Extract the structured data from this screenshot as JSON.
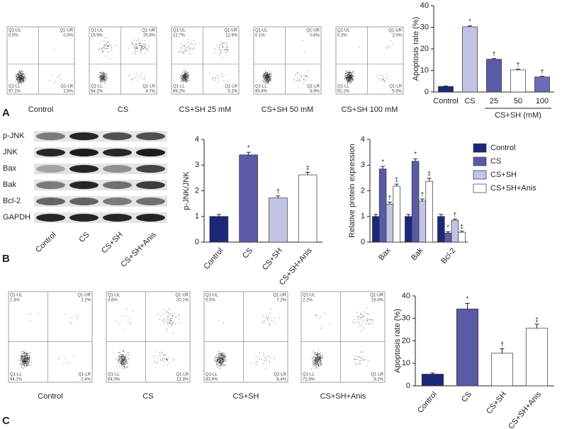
{
  "chart_data": [
    {
      "type": "bar",
      "ylabel": "Apoptosis rate (%)",
      "categories": [
        "Control",
        "CS",
        "25",
        "50",
        "100"
      ],
      "x_group_label": "CS+SH (mM)",
      "values": [
        2.6,
        30.2,
        15.2,
        10.2,
        7.0
      ],
      "errors": [
        0.2,
        0.4,
        0.3,
        0.4,
        0.3
      ],
      "annotations": [
        null,
        "*",
        "†",
        "†",
        "†"
      ],
      "colors": [
        "#1b2878",
        "#c3c3e3",
        "#5a5aa6",
        "#ffffff",
        "#6b6bb6"
      ],
      "ylim": [
        0,
        40
      ],
      "yticks": [
        0,
        10,
        20,
        30,
        40
      ]
    },
    {
      "type": "bar",
      "ylabel": "p-JNK/JNK",
      "categories": [
        "Control",
        "CS",
        "CS+SH",
        "CS+SH+Anis"
      ],
      "values": [
        1.0,
        3.4,
        1.72,
        2.62
      ],
      "errors": [
        0.08,
        0.1,
        0.08,
        0.1
      ],
      "annotations": [
        null,
        "*",
        "†",
        "‡"
      ],
      "colors": [
        "#1b2878",
        "#5a5aa6",
        "#c3c3e3",
        "#ffffff"
      ],
      "ylim": [
        0,
        4
      ],
      "yticks": [
        0,
        1,
        2,
        3,
        4
      ]
    },
    {
      "type": "grouped-bar",
      "ylabel": "Relative protein expression",
      "categories": [
        "Bax",
        "Bak",
        "Bcl-2"
      ],
      "series": [
        {
          "name": "Control",
          "color": "#1b2878",
          "values": [
            1.0,
            1.0,
            1.0
          ],
          "errors": [
            0.08,
            0.08,
            0.08
          ],
          "annotations": [
            null,
            null,
            null
          ]
        },
        {
          "name": "CS",
          "color": "#5a5aa6",
          "values": [
            2.85,
            3.15,
            0.35
          ],
          "errors": [
            0.1,
            0.1,
            0.05
          ],
          "annotations": [
            "*",
            "*",
            "*"
          ]
        },
        {
          "name": "CS+SH",
          "color": "#c3c3e3",
          "values": [
            1.48,
            1.6,
            0.85
          ],
          "errors": [
            0.08,
            0.08,
            0.05
          ],
          "annotations": [
            "†",
            "†",
            "†"
          ]
        },
        {
          "name": "CS+SH+Anis",
          "color": "#ffffff",
          "values": [
            2.18,
            2.37,
            0.38
          ],
          "errors": [
            0.08,
            0.12,
            0.05
          ],
          "annotations": [
            "‡",
            "‡",
            "‡"
          ]
        }
      ],
      "ylim": [
        0,
        4
      ],
      "yticks": [
        0,
        1,
        2,
        3,
        4
      ],
      "legend": "outside-right"
    },
    {
      "type": "bar",
      "ylabel": "Apoptosis rate (%)",
      "categories": [
        "Control",
        "CS",
        "CS+SH",
        "CS+SH+Anis"
      ],
      "values": [
        5.2,
        34.2,
        14.5,
        25.6
      ],
      "errors": [
        0.5,
        2.5,
        2.0,
        1.8
      ],
      "annotations": [
        null,
        "*",
        "†",
        "‡"
      ],
      "colors": [
        "#1b2878",
        "#5a5aa6",
        "#ffffff",
        "#ffffff"
      ],
      "ylim": [
        0,
        40
      ],
      "yticks": [
        0,
        10,
        20,
        30,
        40
      ]
    }
  ],
  "figure": {
    "panel_letters": [
      "A",
      "B",
      "C"
    ],
    "flow_a": [
      {
        "label": "Control",
        "quadrants": [
          {
            "name": "Q1-UL",
            "value": "0.0%"
          },
          {
            "name": "Q1-UR",
            "value": "0.3%"
          },
          {
            "name": "Q1-LL",
            "value": "97.1%"
          },
          {
            "name": "Q1-LR",
            "value": "2.6%"
          }
        ]
      },
      {
        "label": "CS",
        "quadrants": [
          {
            "name": "Q1-UL",
            "value": "15.5%"
          },
          {
            "name": "Q1-UR",
            "value": "25.6%"
          },
          {
            "name": "Q1-LL",
            "value": "54.2%"
          },
          {
            "name": "Q1-LR",
            "value": "4.7%"
          }
        ]
      },
      {
        "label": "CS+SH 25 mM",
        "quadrants": [
          {
            "name": "Q1-UL",
            "value": "12.7%"
          },
          {
            "name": "Q1-UR",
            "value": "12.9%"
          },
          {
            "name": "Q1-LL",
            "value": "69.2%"
          },
          {
            "name": "Q1-LR",
            "value": "5.2%"
          }
        ]
      },
      {
        "label": "CS+SH 50 mM",
        "quadrants": [
          {
            "name": "Q1-UL",
            "value": "0.1%"
          },
          {
            "name": "Q1-UR",
            "value": "0.6%"
          },
          {
            "name": "Q1-LL",
            "value": "90.4%"
          },
          {
            "name": "Q1-LR",
            "value": "8.9%"
          }
        ]
      },
      {
        "label": "CS+SH 100 mM",
        "quadrants": [
          {
            "name": "Q1-UL",
            "value": "0.3%"
          },
          {
            "name": "Q1-UR",
            "value": "2.0%"
          },
          {
            "name": "Q1-LL",
            "value": "92.2%"
          },
          {
            "name": "Q1-LR",
            "value": "5.5%"
          }
        ]
      }
    ],
    "flow_c": [
      {
        "label": "Control",
        "quadrants": [
          {
            "name": "Q1-UL",
            "value": "1.3%"
          },
          {
            "name": "Q1-UR",
            "value": "2.2%"
          },
          {
            "name": "Q1-LL",
            "value": "94.1%"
          },
          {
            "name": "Q1-LR",
            "value": "2.4%"
          }
        ]
      },
      {
        "label": "CS",
        "quadrants": [
          {
            "name": "Q1-UL",
            "value": "3.6%"
          },
          {
            "name": "Q1-UR",
            "value": "20.1%"
          },
          {
            "name": "Q1-LL",
            "value": "64.0%"
          },
          {
            "name": "Q1-LR",
            "value": "12.3%"
          }
        ]
      },
      {
        "label": "CS+SH",
        "quadrants": [
          {
            "name": "Q1-UL",
            "value": "0.5%"
          },
          {
            "name": "Q1-UR",
            "value": "7.2%"
          },
          {
            "name": "Q1-LL",
            "value": "83.9%"
          },
          {
            "name": "Q1-LR",
            "value": "8.4%"
          }
        ]
      },
      {
        "label": "CS+SH+Anis",
        "quadrants": [
          {
            "name": "Q1-UL",
            "value": "2.2%"
          },
          {
            "name": "Q1-UR",
            "value": "16.0%"
          },
          {
            "name": "Q1-LL",
            "value": "72.6%"
          },
          {
            "name": "Q1-LR",
            "value": "9.2%"
          }
        ]
      }
    ],
    "western": {
      "proteins": [
        "p-JNK",
        "JNK",
        "Bax",
        "Bak",
        "Bcl-2",
        "GAPDH"
      ],
      "lanes": [
        "Control",
        "CS",
        "CS+SH",
        "CS+SH+Anis"
      ]
    }
  }
}
